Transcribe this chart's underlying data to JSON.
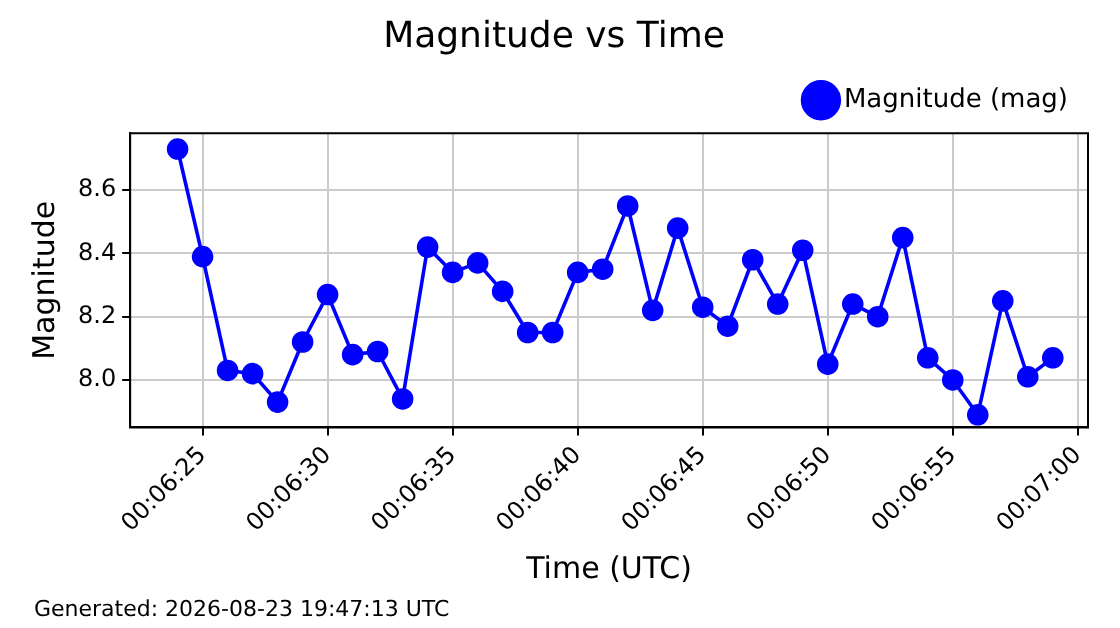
{
  "chart_data": {
    "type": "line",
    "title": "Magnitude vs Time",
    "xlabel": "Time (UTC)",
    "ylabel": "Magnitude",
    "x": [
      0.1066667,
      0.1069444,
      0.1072222,
      0.1075,
      0.1077778,
      0.1080556,
      0.1083333,
      0.1086111,
      0.1088889,
      0.1091667,
      0.1094444,
      0.1097222,
      0.11,
      0.1102778,
      0.1105556,
      0.1108333,
      0.1111111,
      0.1113889,
      0.1116667,
      0.1119444,
      0.1122222,
      0.1125,
      0.1127778,
      0.1130556,
      0.1133333,
      0.1136111,
      0.1138889,
      0.1141667,
      0.1144444,
      0.1147222,
      0.115,
      0.1152778,
      0.1155556,
      0.1158333,
      0.1161111,
      0.1163889
    ],
    "series": [
      {
        "name": "Magnitude (mag)",
        "color": "#0000ff",
        "values": [
          8.73,
          8.39,
          8.03,
          8.02,
          7.93,
          8.12,
          8.27,
          8.08,
          8.09,
          7.94,
          8.42,
          8.34,
          8.37,
          8.28,
          8.15,
          8.15,
          8.34,
          8.35,
          8.55,
          8.22,
          8.48,
          8.23,
          8.17,
          8.38,
          8.24,
          8.41,
          8.05,
          8.24,
          8.2,
          8.45,
          8.07,
          8.0,
          7.89,
          8.25,
          8.01,
          8.07
        ]
      }
    ],
    "xlim": [
      0.10614,
      0.11678
    ],
    "xticks": [
      {
        "value": 0.1069444,
        "label": "00:06:25"
      },
      {
        "value": 0.1083333,
        "label": "00:06:30"
      },
      {
        "value": 0.1097222,
        "label": "00:06:35"
      },
      {
        "value": 0.1111111,
        "label": "00:06:40"
      },
      {
        "value": 0.1125,
        "label": "00:06:45"
      },
      {
        "value": 0.1138889,
        "label": "00:06:50"
      },
      {
        "value": 0.1152778,
        "label": "00:06:55"
      },
      {
        "value": 0.1166667,
        "label": "00:07:00"
      }
    ],
    "ylim": [
      7.85,
      8.78
    ],
    "yticks": [
      {
        "value": 8.0,
        "label": "8.0"
      },
      {
        "value": 8.2,
        "label": "8.2"
      },
      {
        "value": 8.4,
        "label": "8.4"
      },
      {
        "value": 8.6,
        "label": "8.6"
      }
    ],
    "grid": true,
    "legend": "top right",
    "marker": "circle",
    "line_style": "solid",
    "annotations": [
      "Generated: 2026-08-23 19:47:13 UTC"
    ]
  }
}
